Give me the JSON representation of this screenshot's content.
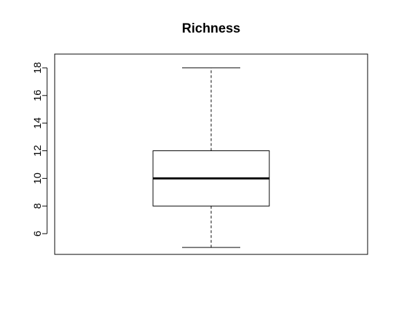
{
  "chart_data": {
    "type": "boxplot",
    "title": "Richness",
    "xlabel": "",
    "ylabel": "",
    "ylim": [
      4.5,
      19
    ],
    "yticks": [
      6,
      8,
      10,
      12,
      14,
      16,
      18
    ],
    "ytick_labels": [
      "6",
      "8",
      "10",
      "12",
      "14",
      "16",
      "18"
    ],
    "box": {
      "min": 5,
      "q1": 8,
      "median": 10,
      "q3": 12,
      "max": 18
    },
    "colors": {
      "stroke": "#000000",
      "background": "#ffffff"
    }
  }
}
